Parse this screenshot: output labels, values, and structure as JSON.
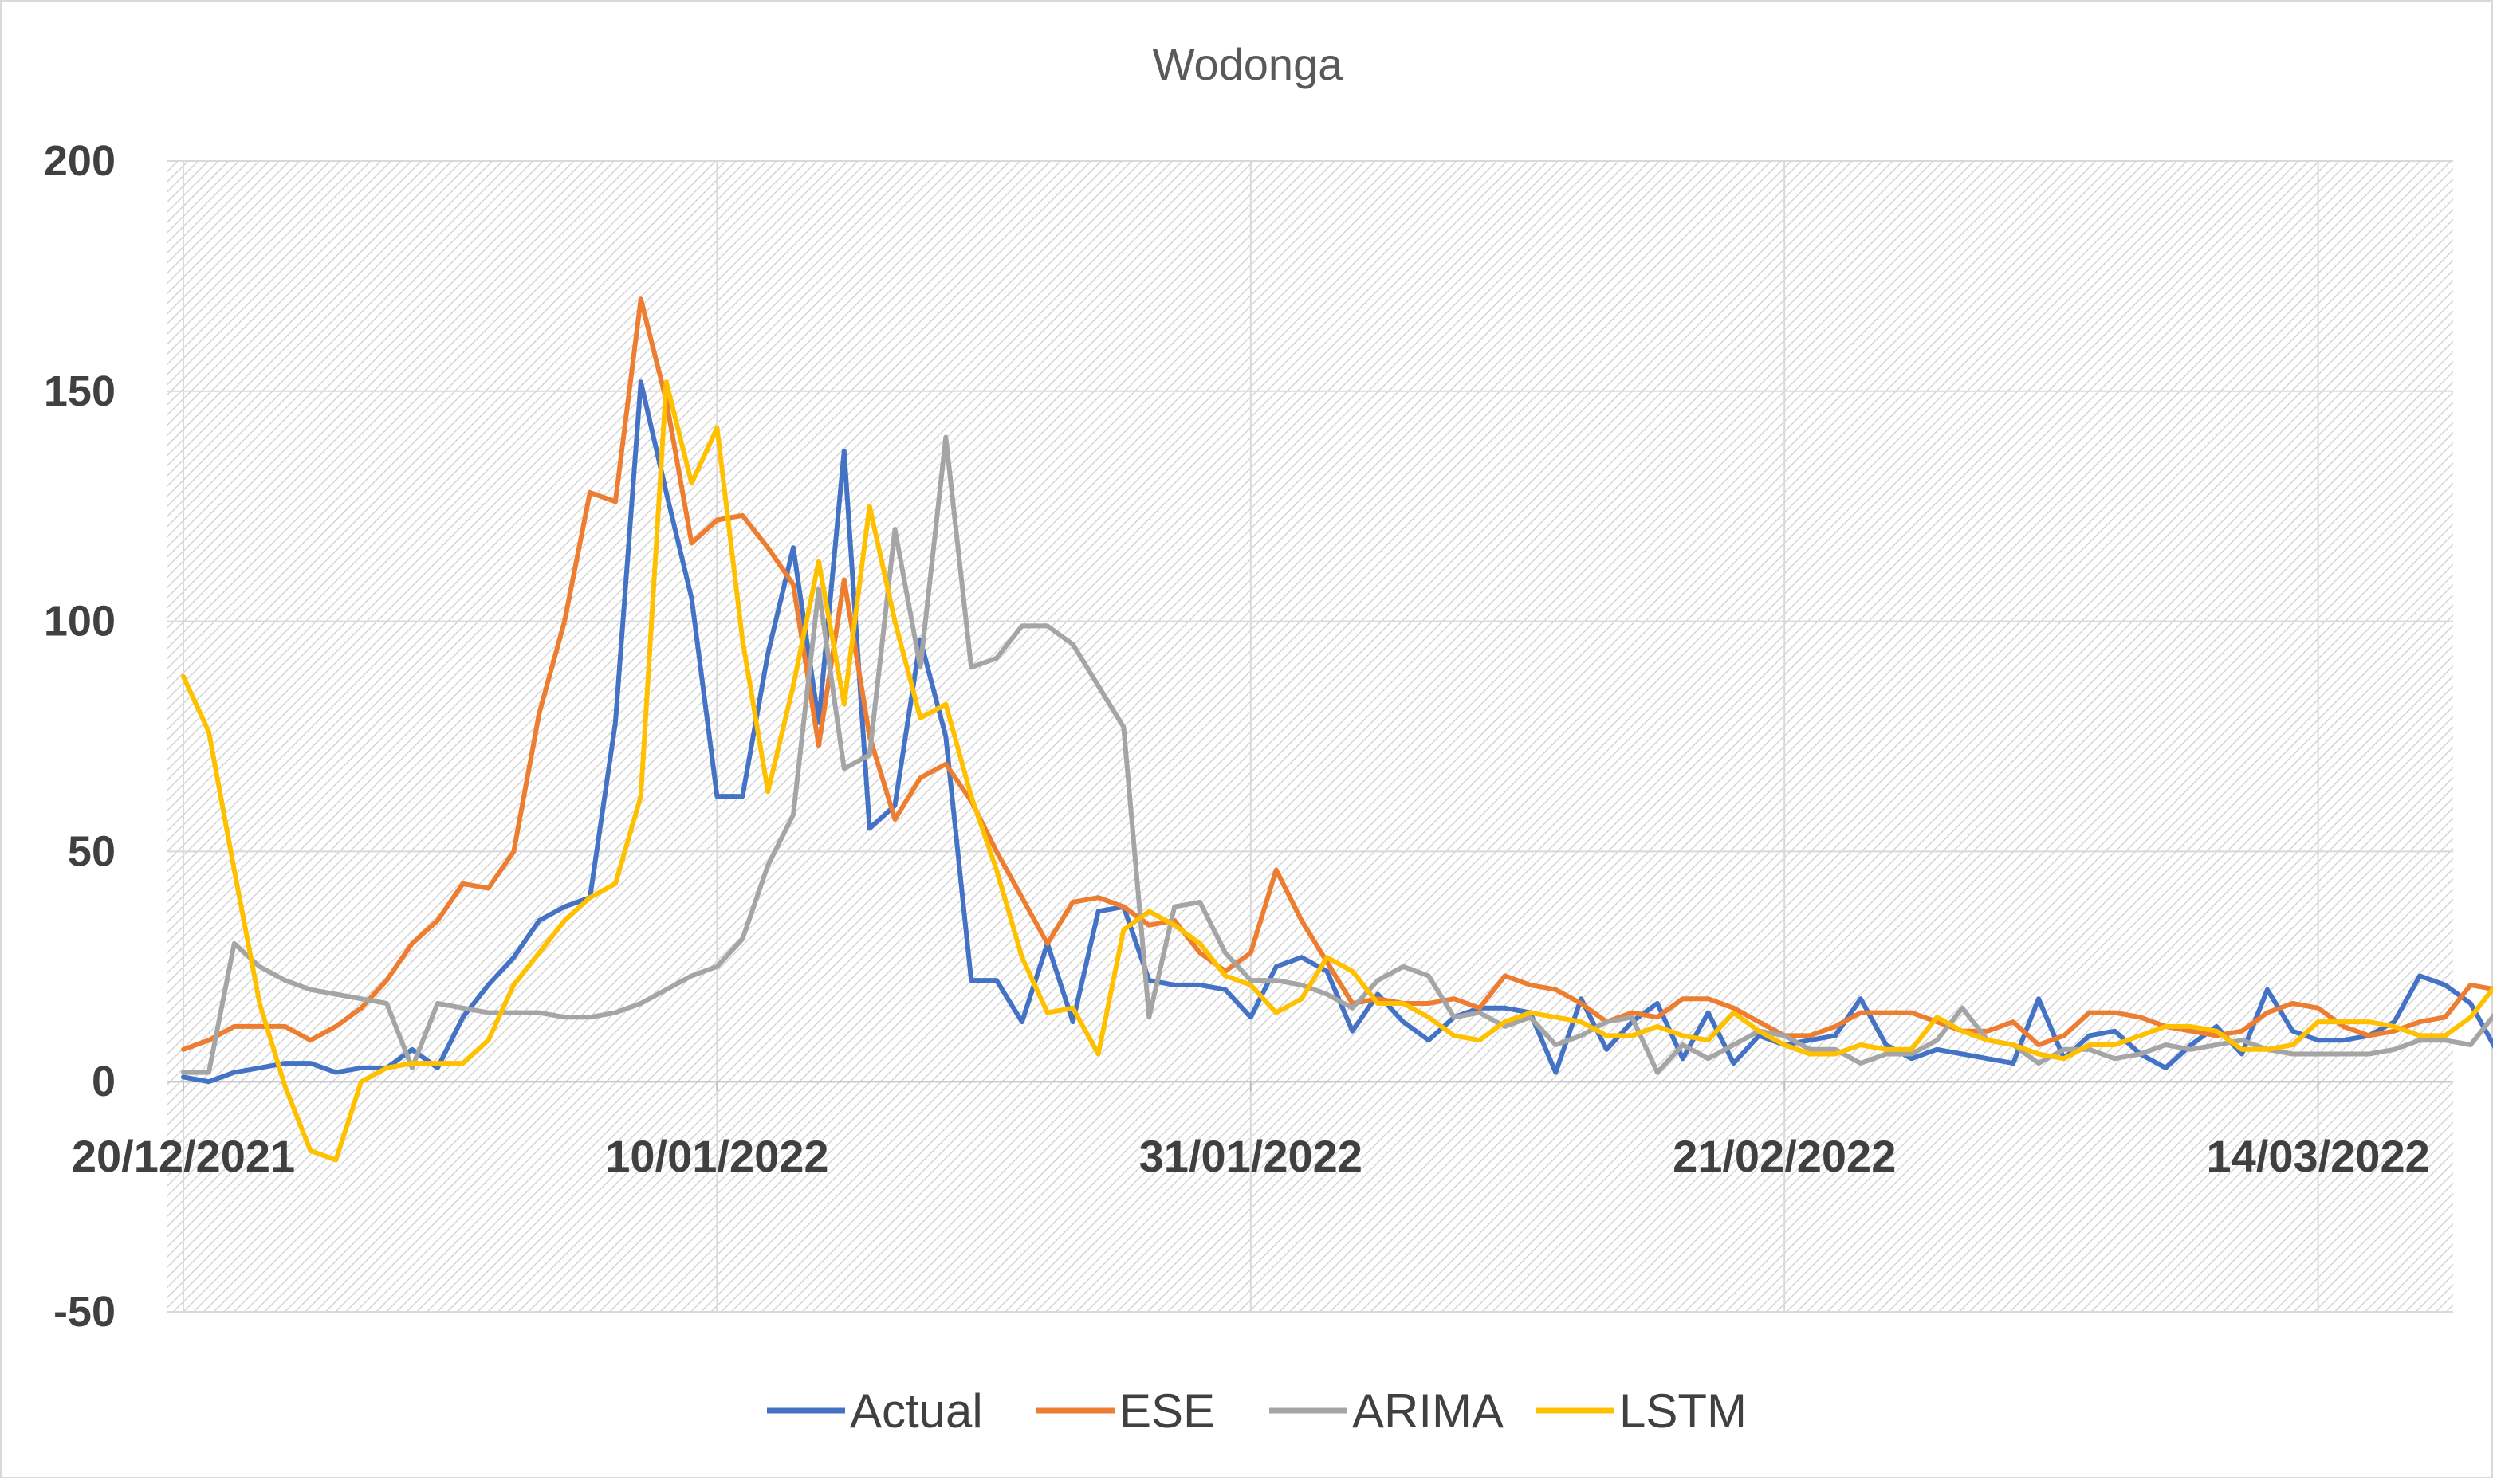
{
  "chart_data": {
    "type": "line",
    "title": "Wodonga",
    "xlabel": "",
    "ylabel": "",
    "ylim": [
      -50,
      200
    ],
    "y_ticks": [
      "200",
      "150",
      "100",
      "50",
      "0",
      "-50"
    ],
    "x_tick_labels": [
      "20/12/2021",
      "10/01/2022",
      "31/01/2022",
      "21/02/2022",
      "14/03/2022"
    ],
    "x_tick_days": [
      0,
      21,
      42,
      63,
      84
    ],
    "x_range_days": [
      0,
      89
    ],
    "grid": true,
    "legend": "bottom",
    "series": [
      {
        "name": "Actual",
        "color": "#4472C4",
        "values": [
          1,
          0,
          2,
          3,
          4,
          4,
          2,
          3,
          3,
          7,
          3,
          14,
          21,
          27,
          35,
          38,
          40,
          78,
          152,
          128,
          105,
          62,
          62,
          93,
          116,
          78,
          137,
          55,
          60,
          96,
          75,
          22,
          22,
          13,
          30,
          13,
          37,
          38,
          22,
          21,
          21,
          20,
          14,
          25,
          27,
          24,
          11,
          19,
          13,
          9,
          14,
          16,
          16,
          15,
          2,
          18,
          7,
          13,
          17,
          5,
          15,
          4,
          10,
          8,
          9,
          10,
          18,
          8,
          5,
          7,
          6,
          5,
          4,
          18,
          5,
          10,
          11,
          6,
          3,
          8,
          12,
          6,
          20,
          11,
          9,
          9,
          10,
          13,
          23,
          21,
          17,
          7
        ]
      },
      {
        "name": "ESE",
        "color": "#ED7D31",
        "values": [
          7,
          9,
          12,
          12,
          12,
          9,
          12,
          16,
          22,
          30,
          35,
          43,
          42,
          50,
          80,
          100,
          128,
          126,
          170,
          148,
          117,
          122,
          123,
          116,
          108,
          73,
          109,
          75,
          57,
          66,
          69,
          61,
          50,
          40,
          30,
          39,
          40,
          38,
          34,
          35,
          28,
          24,
          28,
          46,
          35,
          26,
          17,
          18,
          17,
          17,
          18,
          16,
          23,
          21,
          20,
          17,
          13,
          15,
          14,
          18,
          18,
          16,
          13,
          10,
          10,
          12,
          15,
          15,
          15,
          13,
          11,
          11,
          13,
          8,
          10,
          15,
          15,
          14,
          12,
          11,
          10,
          11,
          15,
          17,
          16,
          12,
          10,
          11,
          13,
          14,
          21,
          20,
          15,
          14
        ]
      },
      {
        "name": "ARIMA",
        "color": "#A5A5A5",
        "values": [
          2,
          2,
          30,
          25,
          22,
          20,
          19,
          18,
          17,
          3,
          17,
          16,
          15,
          15,
          15,
          14,
          14,
          15,
          17,
          20,
          23,
          25,
          31,
          47,
          58,
          107,
          68,
          71,
          120,
          90,
          140,
          90,
          92,
          99,
          99,
          95,
          86,
          77,
          14,
          38,
          39,
          28,
          22,
          22,
          21,
          19,
          16,
          22,
          25,
          23,
          14,
          15,
          12,
          14,
          8,
          10,
          13,
          14,
          2,
          8,
          5,
          8,
          11,
          10,
          7,
          7,
          4,
          6,
          6,
          9,
          16,
          9,
          8,
          4,
          7,
          7,
          5,
          6,
          8,
          7,
          8,
          9,
          7,
          6,
          6,
          6,
          6,
          7,
          9,
          9,
          8,
          15,
          10
        ]
      },
      {
        "name": "LSTM",
        "color": "#FFC000",
        "values": [
          88,
          76,
          46,
          17,
          -1,
          -15,
          -17,
          0,
          3,
          4,
          4,
          4,
          9,
          21,
          28,
          35,
          40,
          43,
          62,
          152,
          130,
          142,
          96,
          63,
          86,
          113,
          82,
          125,
          100,
          79,
          82,
          62,
          46,
          27,
          15,
          16,
          6,
          33,
          37,
          34,
          30,
          23,
          21,
          15,
          18,
          27,
          24,
          17,
          17,
          14,
          10,
          9,
          13,
          15,
          14,
          13,
          10,
          10,
          12,
          10,
          9,
          15,
          11,
          8,
          6,
          6,
          8,
          7,
          7,
          14,
          11,
          9,
          8,
          6,
          5,
          8,
          8,
          10,
          12,
          12,
          11,
          7,
          7,
          8,
          13,
          13,
          13,
          12,
          10,
          10,
          14,
          21,
          21,
          20
        ]
      }
    ]
  }
}
